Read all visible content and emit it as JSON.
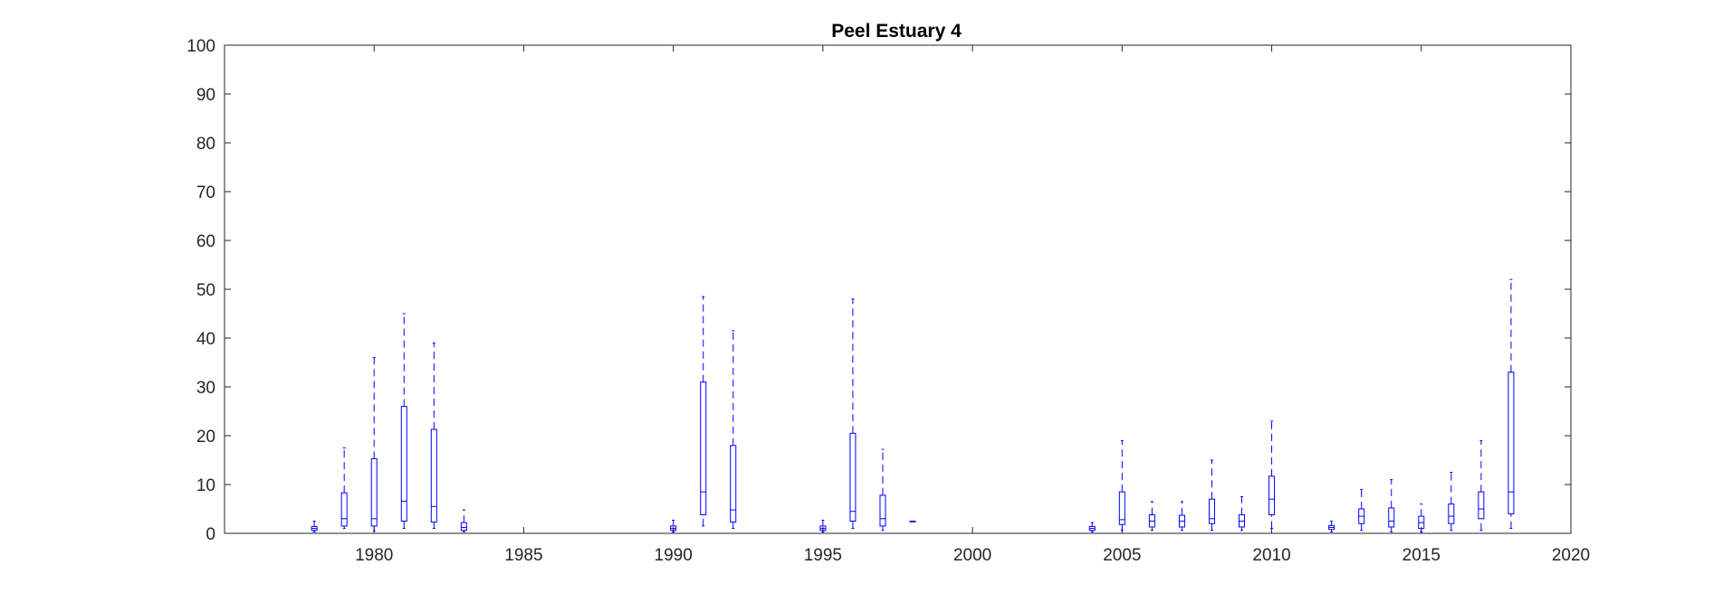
{
  "chart_data": {
    "type": "box",
    "title": "Peel Estuary 4",
    "xlabel": "",
    "ylabel": "",
    "xlim": [
      1975,
      2020
    ],
    "ylim": [
      0,
      100
    ],
    "xticks": [
      1980,
      1985,
      1990,
      1995,
      2000,
      2005,
      2010,
      2015,
      2020
    ],
    "yticks": [
      0,
      10,
      20,
      30,
      40,
      50,
      60,
      70,
      80,
      90,
      100
    ],
    "grid": false,
    "color": "#0000ff",
    "boxes": [
      {
        "x": 1978,
        "min": 0.3,
        "q1": 0.6,
        "median": 1.0,
        "q3": 1.4,
        "max": 2.5
      },
      {
        "x": 1979,
        "min": 1.0,
        "q1": 1.5,
        "median": 3.0,
        "q3": 8.3,
        "max": 17.5
      },
      {
        "x": 1980,
        "min": 0.5,
        "q1": 1.5,
        "median": 3.0,
        "q3": 15.3,
        "max": 36.0
      },
      {
        "x": 1981,
        "min": 1.0,
        "q1": 2.5,
        "median": 6.6,
        "q3": 26.0,
        "max": 45.0
      },
      {
        "x": 1982,
        "min": 1.0,
        "q1": 2.3,
        "median": 5.5,
        "q3": 21.3,
        "max": 39.0
      },
      {
        "x": 1983,
        "min": 0.3,
        "q1": 0.6,
        "median": 1.2,
        "q3": 2.2,
        "max": 4.8
      },
      {
        "x": 1990,
        "min": 0.3,
        "q1": 0.6,
        "median": 1.0,
        "q3": 1.5,
        "max": 2.7
      },
      {
        "x": 1991,
        "min": 1.5,
        "q1": 3.8,
        "median": 8.5,
        "q3": 31.0,
        "max": 48.5
      },
      {
        "x": 1992,
        "min": 1.0,
        "q1": 2.3,
        "median": 4.8,
        "q3": 18.0,
        "max": 41.5
      },
      {
        "x": 1995,
        "min": 0.3,
        "q1": 0.6,
        "median": 1.0,
        "q3": 1.5,
        "max": 2.7
      },
      {
        "x": 1996,
        "min": 1.0,
        "q1": 2.5,
        "median": 4.5,
        "q3": 20.5,
        "max": 48.0
      },
      {
        "x": 1997,
        "min": 0.6,
        "q1": 1.5,
        "median": 3.0,
        "q3": 7.8,
        "max": 17.2
      },
      {
        "x": 1998,
        "min": 2.5,
        "q1": 2.5,
        "median": 2.5,
        "q3": 2.5,
        "max": 2.5
      },
      {
        "x": 2004,
        "min": 0.3,
        "q1": 0.6,
        "median": 1.0,
        "q3": 1.4,
        "max": 2.2
      },
      {
        "x": 2005,
        "min": 0.6,
        "q1": 1.8,
        "median": 2.8,
        "q3": 8.5,
        "max": 19.0
      },
      {
        "x": 2006,
        "min": 0.6,
        "q1": 1.3,
        "median": 2.5,
        "q3": 3.8,
        "max": 6.5
      },
      {
        "x": 2007,
        "min": 0.6,
        "q1": 1.3,
        "median": 2.5,
        "q3": 3.7,
        "max": 6.5
      },
      {
        "x": 2008,
        "min": 0.6,
        "q1": 2.0,
        "median": 3.0,
        "q3": 7.0,
        "max": 15.0
      },
      {
        "x": 2009,
        "min": 0.6,
        "q1": 1.3,
        "median": 2.5,
        "q3": 3.8,
        "max": 7.5
      },
      {
        "x": 2010,
        "min": 1.0,
        "q1": 3.8,
        "median": 7.0,
        "q3": 11.7,
        "max": 23.0
      },
      {
        "x": 2012,
        "min": 0.3,
        "q1": 0.8,
        "median": 1.2,
        "q3": 1.6,
        "max": 2.5
      },
      {
        "x": 2013,
        "min": 0.6,
        "q1": 2.0,
        "median": 3.5,
        "q3": 5.0,
        "max": 9.0
      },
      {
        "x": 2014,
        "min": 0.3,
        "q1": 1.3,
        "median": 2.5,
        "q3": 5.2,
        "max": 11.0
      },
      {
        "x": 2015,
        "min": 0.3,
        "q1": 1.0,
        "median": 2.2,
        "q3": 3.5,
        "max": 6.0
      },
      {
        "x": 2016,
        "min": 0.6,
        "q1": 2.0,
        "median": 3.5,
        "q3": 6.0,
        "max": 12.5
      },
      {
        "x": 2017,
        "min": 0.6,
        "q1": 3.0,
        "median": 5.0,
        "q3": 8.5,
        "max": 19.0
      },
      {
        "x": 2018,
        "min": 1.0,
        "q1": 4.0,
        "median": 8.5,
        "q3": 33.0,
        "max": 52.0
      }
    ]
  }
}
